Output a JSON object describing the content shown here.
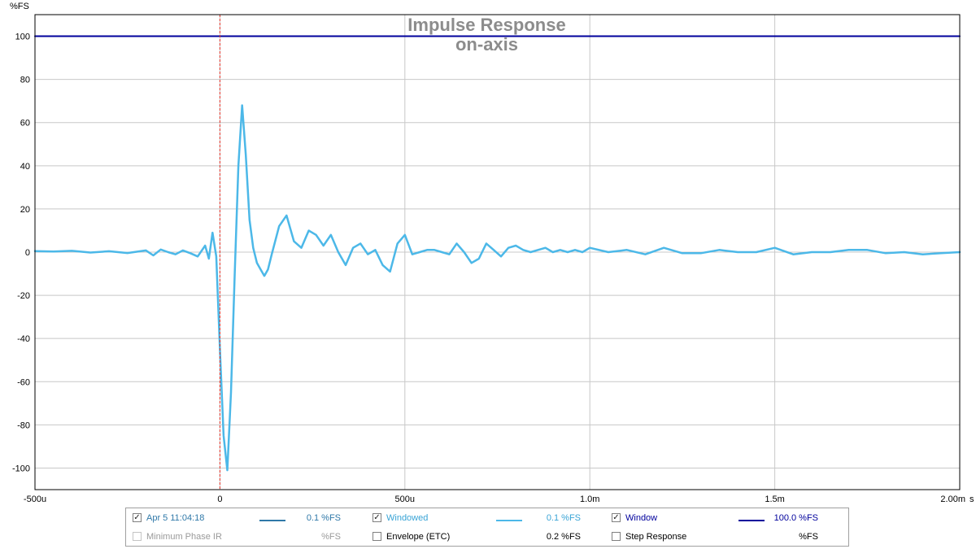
{
  "chart_data": {
    "type": "line",
    "title": "Impulse Response",
    "subtitle": "on-axis",
    "y_unit": "%FS",
    "x_unit": "s",
    "xlim": [
      -0.0005,
      0.002
    ],
    "ylim": [
      -110,
      110
    ],
    "x_ticks": [
      {
        "value": -0.0005,
        "label": "-500u"
      },
      {
        "value": 0,
        "label": "0"
      },
      {
        "value": 0.0005,
        "label": "500u"
      },
      {
        "value": 0.001,
        "label": "1.0m"
      },
      {
        "value": 0.0015,
        "label": "1.5m"
      },
      {
        "value": 0.002,
        "label": "2.00m"
      }
    ],
    "y_ticks": [
      {
        "value": 100,
        "label": "100"
      },
      {
        "value": 80,
        "label": "80"
      },
      {
        "value": 60,
        "label": "60"
      },
      {
        "value": 40,
        "label": "40"
      },
      {
        "value": 20,
        "label": "20"
      },
      {
        "value": 0,
        "label": "0"
      },
      {
        "value": -20,
        "label": "-20"
      },
      {
        "value": -40,
        "label": "-40"
      },
      {
        "value": -60,
        "label": "-60"
      },
      {
        "value": -80,
        "label": "-80"
      },
      {
        "value": -100,
        "label": "-100"
      }
    ],
    "grid": true,
    "marker_x": 0,
    "series": [
      {
        "name": "Windowed",
        "color": "#4cb8e8",
        "x": [
          -0.0005,
          -0.00045,
          -0.0004,
          -0.00035,
          -0.0003,
          -0.00025,
          -0.0002,
          -0.00018,
          -0.00016,
          -0.00014,
          -0.00012,
          -0.0001,
          -8e-05,
          -6e-05,
          -4e-05,
          -3e-05,
          -2e-05,
          -1e-05,
          0,
          1e-05,
          2e-05,
          3e-05,
          4e-05,
          5e-05,
          6e-05,
          7e-05,
          8e-05,
          9e-05,
          0.0001,
          0.00011,
          0.00012,
          0.00013,
          0.00014,
          0.00016,
          0.00018,
          0.0002,
          0.00022,
          0.00024,
          0.00026,
          0.00028,
          0.0003,
          0.00032,
          0.00034,
          0.00036,
          0.00038,
          0.0004,
          0.00042,
          0.00044,
          0.00046,
          0.00048,
          0.0005,
          0.00052,
          0.00054,
          0.00056,
          0.00058,
          0.0006,
          0.00062,
          0.00064,
          0.00066,
          0.00068,
          0.0007,
          0.00072,
          0.00074,
          0.00076,
          0.00078,
          0.0008,
          0.00082,
          0.00084,
          0.00086,
          0.00088,
          0.0009,
          0.00092,
          0.00094,
          0.00096,
          0.00098,
          0.001,
          0.00105,
          0.0011,
          0.00115,
          0.0012,
          0.00125,
          0.0013,
          0.00135,
          0.0014,
          0.00145,
          0.0015,
          0.00155,
          0.0016,
          0.00165,
          0.0017,
          0.00175,
          0.0018,
          0.00185,
          0.0019,
          0.00195,
          0.002
        ],
        "values": [
          0.5,
          0.3,
          0.6,
          -0.2,
          0.4,
          -0.4,
          0.8,
          -1.5,
          1.2,
          0,
          -1,
          0.8,
          -0.5,
          -2,
          3,
          -3,
          9,
          -2,
          -45,
          -85,
          -101,
          -65,
          -10,
          40,
          68,
          45,
          15,
          2,
          -5,
          -8,
          -11,
          -8,
          -1,
          12,
          17,
          5,
          2,
          10,
          8,
          3,
          8,
          0,
          -6,
          2,
          4,
          -1,
          1,
          -6,
          -9,
          4,
          8,
          -1,
          0,
          1,
          1,
          0,
          -1,
          4,
          0,
          -5,
          -3,
          4,
          1,
          -2,
          2,
          3,
          1,
          0,
          1,
          2,
          0,
          1,
          0,
          1,
          0,
          2,
          0,
          1,
          -1,
          2,
          -0.5,
          -0.5,
          1,
          0,
          0,
          2,
          -1,
          0,
          0,
          1,
          1,
          -0.5,
          0,
          -1,
          -0.5,
          0
        ]
      },
      {
        "name": "Window",
        "color": "#00009c",
        "x": [
          -0.0005,
          0.002
        ],
        "values": [
          100,
          100
        ]
      }
    ]
  },
  "legend": {
    "row1": [
      {
        "label": "Apr 5 11:04:18",
        "checked": true,
        "swatch": "#2f78a8",
        "value": "0.1 %FS",
        "color": "#2f78a8"
      },
      {
        "label": "Windowed",
        "checked": true,
        "swatch": "#4cb8e8",
        "value": "0.1 %FS",
        "color": "#39a4d6"
      },
      {
        "label": "Window",
        "checked": true,
        "swatch": "#00009c",
        "value": "100.0 %FS",
        "color": "#00009c"
      }
    ],
    "row2": [
      {
        "label": "Minimum Phase IR",
        "checked": false,
        "value": "%FS",
        "color": "#9a9a9a",
        "disabled": true
      },
      {
        "label": "Envelope (ETC)",
        "checked": false,
        "value": "0.2 %FS",
        "color": "#000000"
      },
      {
        "label": "Step Response",
        "checked": false,
        "value": "%FS",
        "color": "#000000"
      }
    ]
  }
}
